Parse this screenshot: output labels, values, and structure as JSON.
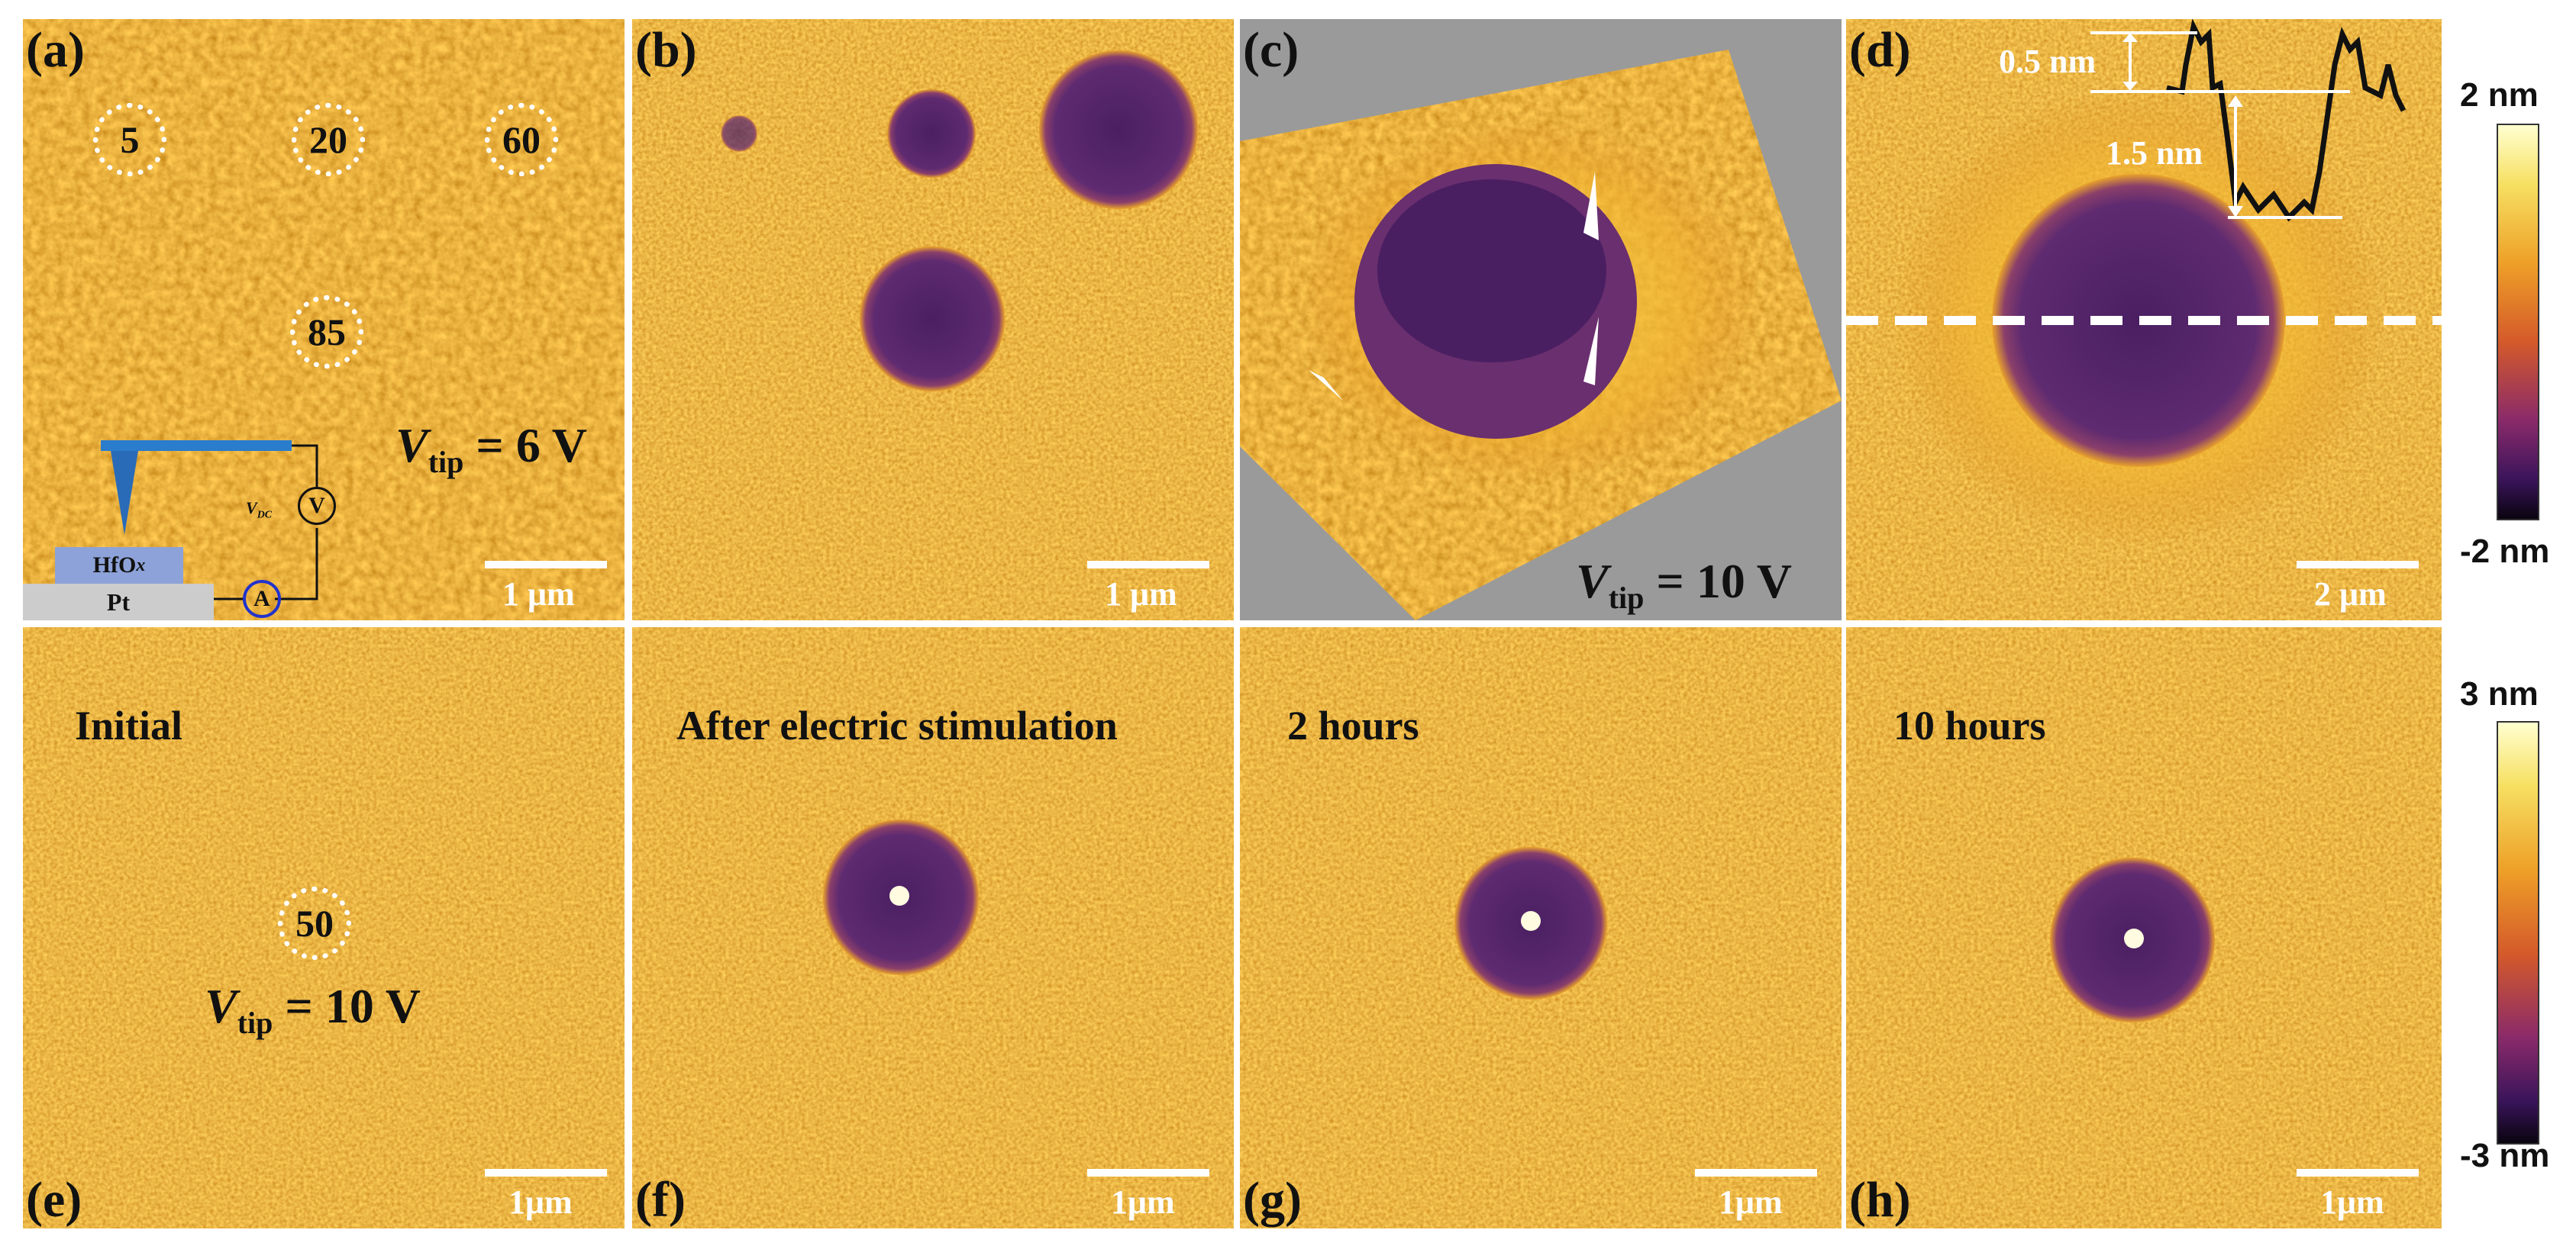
{
  "panels": {
    "a": {
      "letter": "(a)",
      "spots": [
        "5",
        "20",
        "60",
        "85"
      ],
      "vtip_var": "V",
      "vtip_sub": "tip",
      "vtip_value": " = 6 V",
      "scale": "1 μm",
      "schematic": {
        "hfox": "HfO",
        "hfox_x": "x",
        "pt": "Pt",
        "meter_v": "V",
        "meter_a": "A",
        "vdc": "V",
        "vdc_sub": "DC"
      }
    },
    "b": {
      "letter": "(b)",
      "scale": "1 μm"
    },
    "c": {
      "letter": "(c)",
      "vtip_var": "V",
      "vtip_sub": "tip",
      "vtip_value": " = 10 V"
    },
    "d": {
      "letter": "(d)",
      "step1": "0.5 nm",
      "step2": "1.5 nm",
      "scale": "2 μm"
    },
    "e": {
      "letter": "(e)",
      "title": "Initial",
      "spot": "50",
      "vtip_var": "V",
      "vtip_sub": "tip",
      "vtip_value": " = 10 V",
      "scale": "1μm"
    },
    "f": {
      "letter": "(f)",
      "title": "After electric stimulation",
      "scale": "1μm"
    },
    "g": {
      "letter": "(g)",
      "title": "2 hours",
      "scale": "1μm"
    },
    "h": {
      "letter": "(h)",
      "title": "10 hours",
      "scale": "1μm"
    }
  },
  "colorbars": {
    "top": {
      "max": "2 nm",
      "min": "-2 nm"
    },
    "bottom": {
      "max": "3 nm",
      "min": "-3 nm"
    }
  },
  "colors": {
    "surface": "#d9861a",
    "dark_spot": "#5c2a6e",
    "bright_rim": "#f3c02a",
    "scalebar": "#ffffff"
  }
}
